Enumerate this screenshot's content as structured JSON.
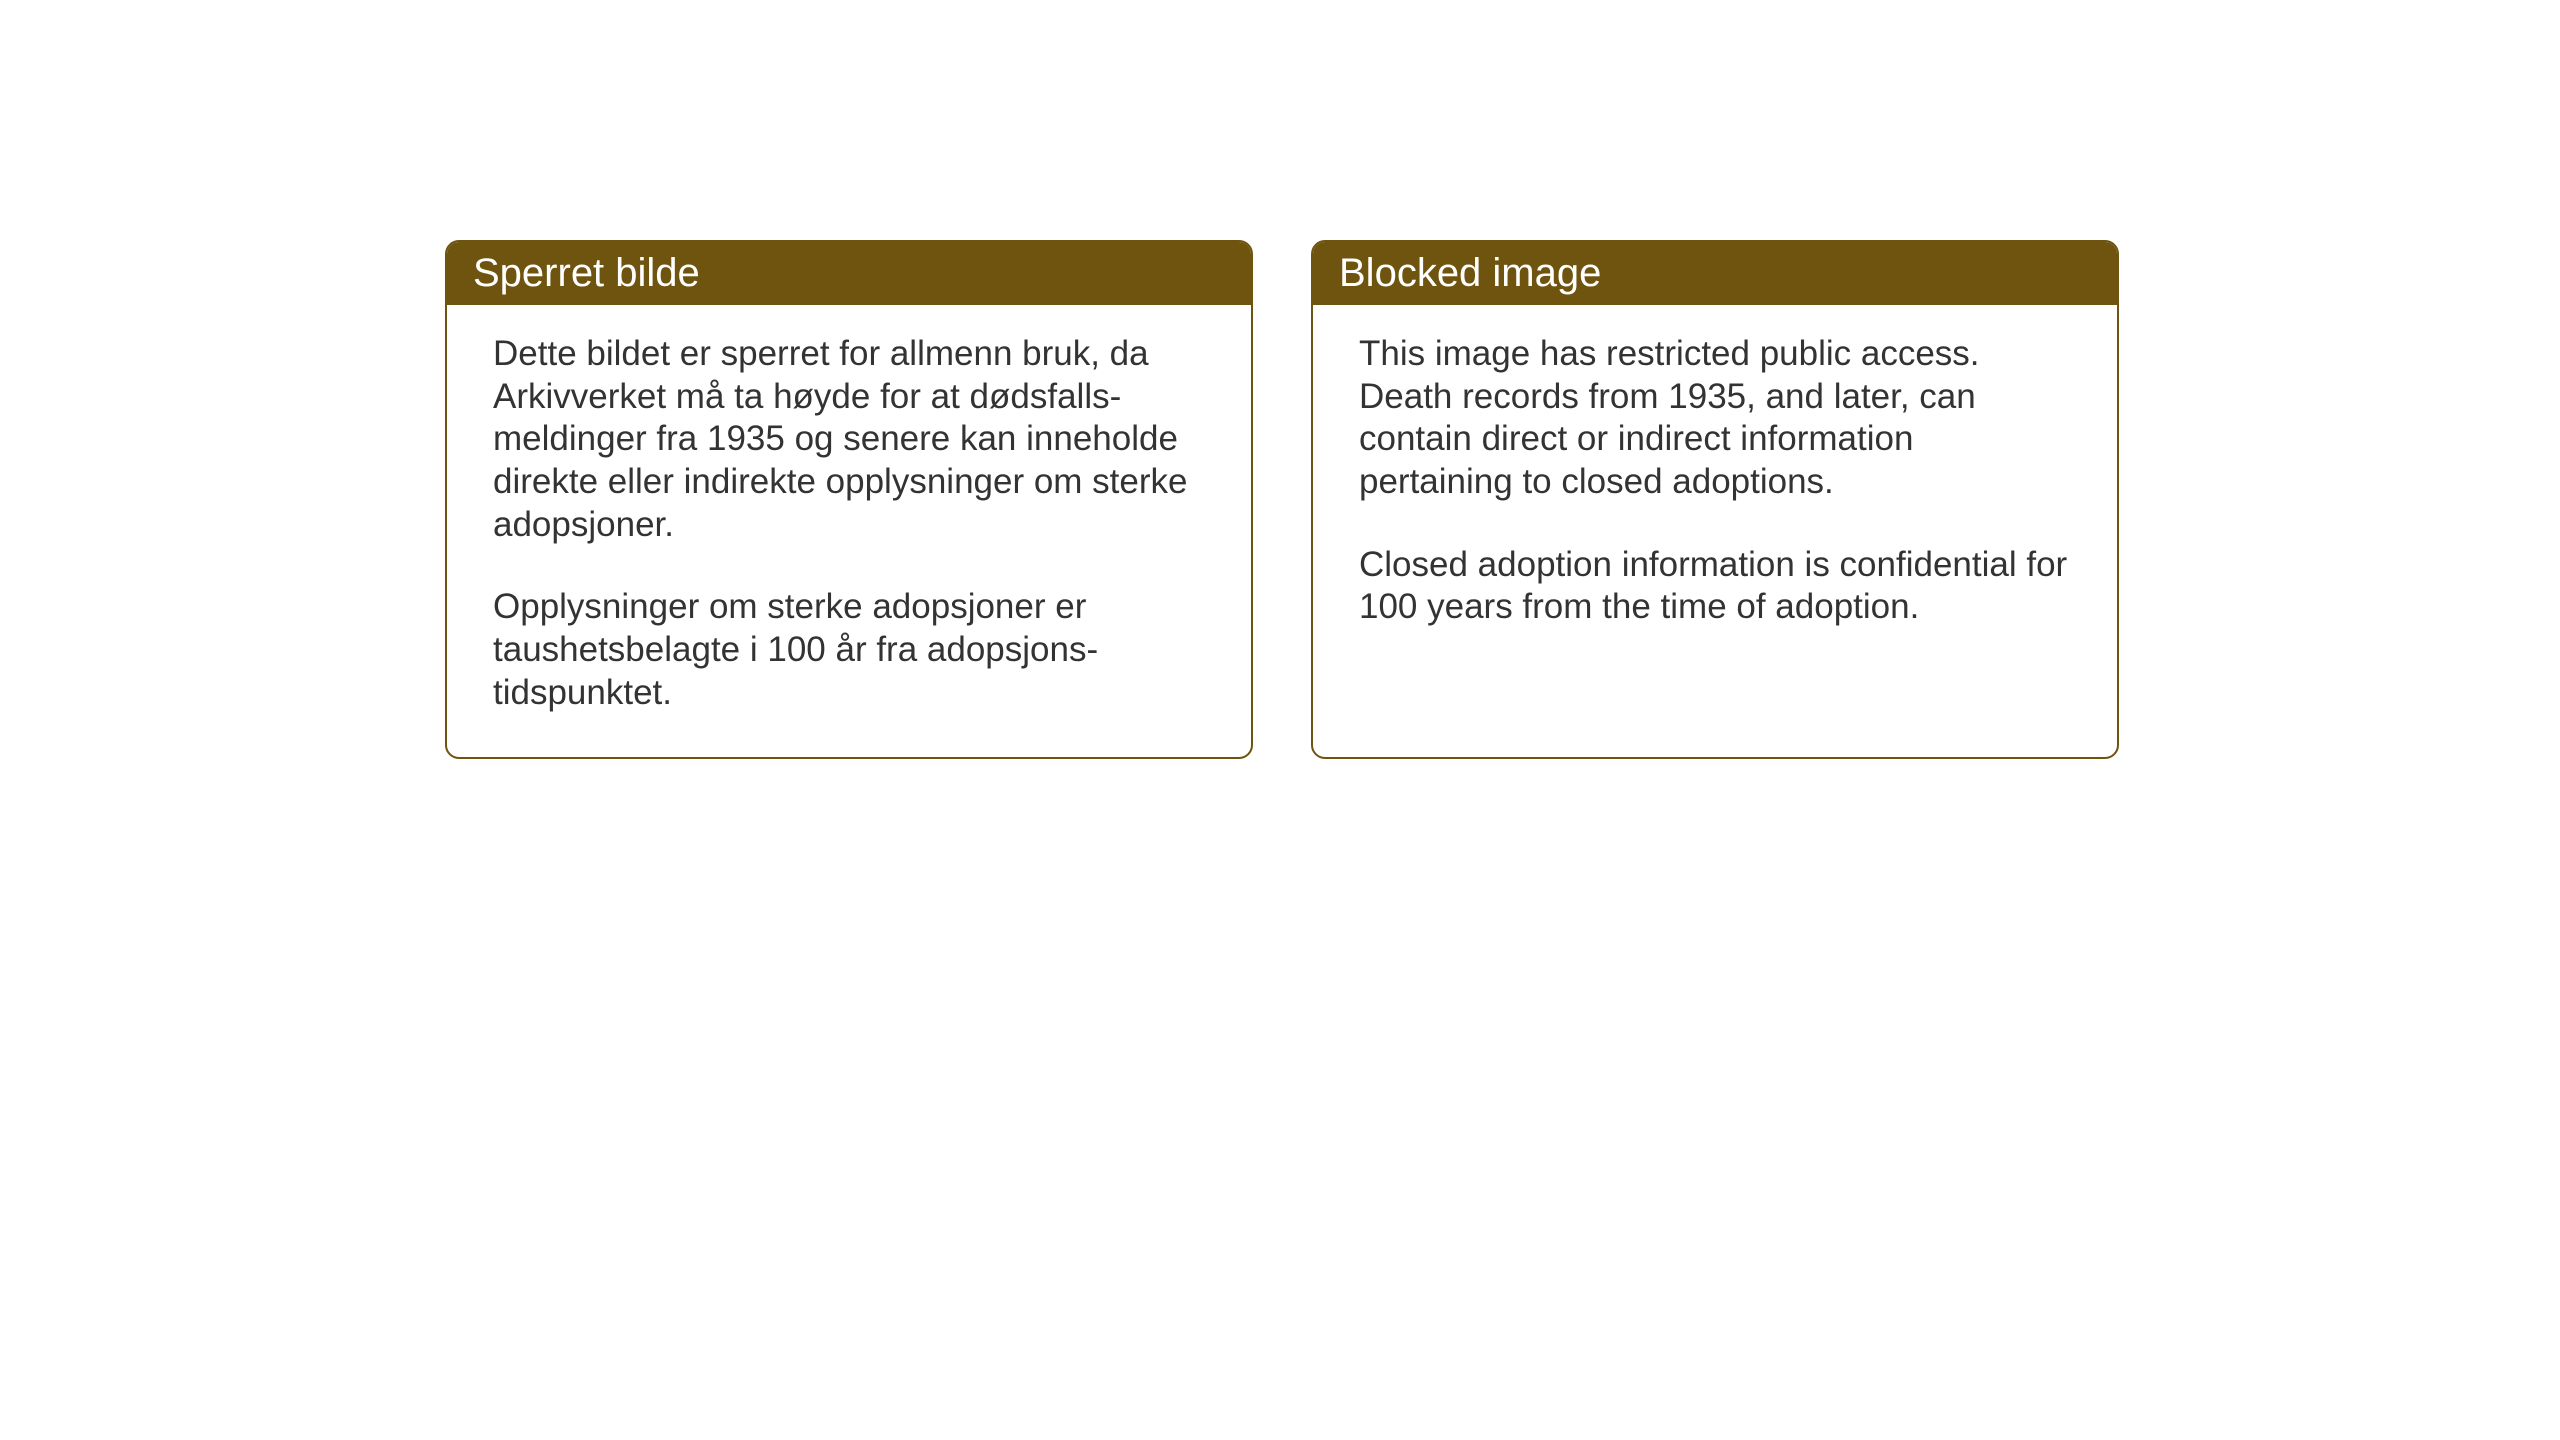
{
  "notices": {
    "norwegian": {
      "title": "Sperret bilde",
      "paragraph1": "Dette bildet er sperret for allmenn bruk, da Arkivverket må ta høyde for at dødsfalls-meldinger fra 1935 og senere kan inneholde direkte eller indirekte opplysninger om sterke adopsjoner.",
      "paragraph2": "Opplysninger om sterke adopsjoner er taushetsbelagte i 100 år fra adopsjons-tidspunktet."
    },
    "english": {
      "title": "Blocked image",
      "paragraph1": "This image has restricted public access. Death records from 1935, and later, can contain direct or indirect information pertaining to closed adoptions.",
      "paragraph2": "Closed adoption information is confidential for 100 years from the time of adoption."
    }
  },
  "styling": {
    "header_background": "#6e540e",
    "header_text_color": "#ffffff",
    "border_color": "#6e540e",
    "body_text_color": "#333333",
    "page_background": "#ffffff",
    "box_border_radius": 14,
    "header_font_size": 40,
    "body_font_size": 35
  }
}
